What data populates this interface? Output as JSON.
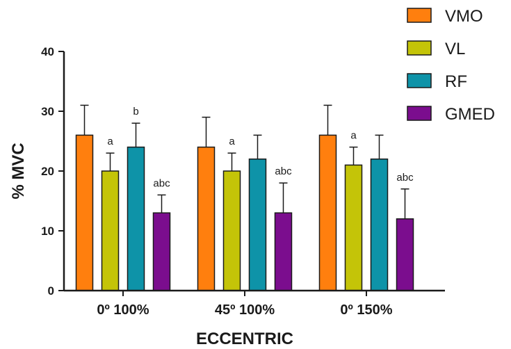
{
  "chart_data": {
    "type": "bar",
    "categories": [
      "0º 100%",
      "45º 100%",
      "0º 150%"
    ],
    "series": [
      {
        "name": "VMO",
        "color": "#ff7f0e",
        "values": [
          26,
          24,
          26
        ],
        "errors": [
          5,
          5,
          5
        ],
        "annotations": [
          "",
          "",
          ""
        ]
      },
      {
        "name": "VL",
        "color": "#c4c408",
        "values": [
          20,
          20,
          21
        ],
        "errors": [
          3,
          3,
          3
        ],
        "annotations": [
          "a",
          "a",
          "a"
        ]
      },
      {
        "name": "RF",
        "color": "#0e93a8",
        "values": [
          24,
          22,
          22
        ],
        "errors": [
          4,
          4,
          4
        ],
        "annotations": [
          "b",
          "",
          ""
        ]
      },
      {
        "name": "GMED",
        "color": "#7b0d8e",
        "values": [
          13,
          13,
          12
        ],
        "errors": [
          3,
          5,
          5
        ],
        "annotations": [
          "abc",
          "abc",
          "abc"
        ]
      }
    ],
    "xlabel": "ECCENTRIC",
    "ylabel": "% MVC",
    "ylim": [
      0,
      40
    ],
    "yticks": [
      0,
      10,
      20,
      30,
      40
    ],
    "grid": false,
    "legend_position": "top-right"
  }
}
